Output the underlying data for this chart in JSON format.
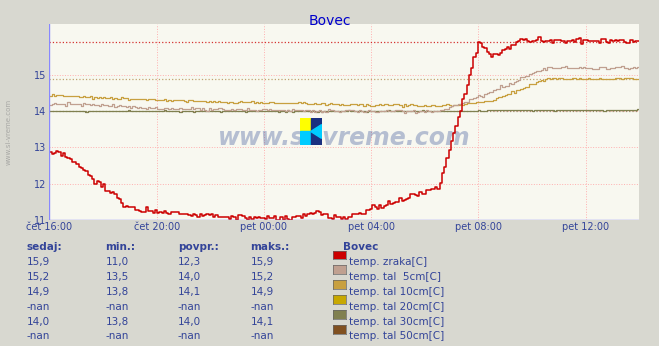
{
  "title": "Bovec",
  "title_color": "#0000cc",
  "bg_color": "#d8d8d0",
  "plot_bg_color": "#f8f8f0",
  "x_ticks_labels": [
    "čet 16:00",
    "čet 20:00",
    "pet 00:00",
    "pet 04:00",
    "pet 08:00",
    "pet 12:00"
  ],
  "x_ticks_positions": [
    0,
    4,
    8,
    12,
    16,
    20
  ],
  "xlim": [
    0,
    22
  ],
  "ylim": [
    11,
    16.4
  ],
  "yticks": [
    11,
    12,
    13,
    14,
    15
  ],
  "line_colors": [
    "#cc0000",
    "#c0a090",
    "#c8a040",
    "#c8a800",
    "#808050",
    "#805020"
  ],
  "hline_red_dotted": 15.9,
  "hline_tan_dotted": 14.9,
  "hline_olive_dotted": 14.0,
  "watermark_text": "www.si-vreme.com",
  "watermark_color": "#1a3a8a",
  "watermark_alpha": 0.3,
  "legend_title": "Bovec",
  "legend_labels": [
    "temp. zraka[C]",
    "temp. tal  5cm[C]",
    "temp. tal 10cm[C]",
    "temp. tal 20cm[C]",
    "temp. tal 30cm[C]",
    "temp. tal 50cm[C]"
  ],
  "legend_colors": [
    "#cc0000",
    "#c0a090",
    "#c8a040",
    "#c8a800",
    "#808050",
    "#805020"
  ],
  "table_headers": [
    "sedaj:",
    "min.:",
    "povpr.:",
    "maks.:"
  ],
  "table_data": [
    [
      "15,9",
      "11,0",
      "12,3",
      "15,9"
    ],
    [
      "15,2",
      "13,5",
      "14,0",
      "15,2"
    ],
    [
      "14,9",
      "13,8",
      "14,1",
      "14,9"
    ],
    [
      "-nan",
      "-nan",
      "-nan",
      "-nan"
    ],
    [
      "14,0",
      "13,8",
      "14,0",
      "14,1"
    ],
    [
      "-nan",
      "-nan",
      "-nan",
      "-nan"
    ]
  ],
  "table_color": "#334499",
  "n_points": 264
}
